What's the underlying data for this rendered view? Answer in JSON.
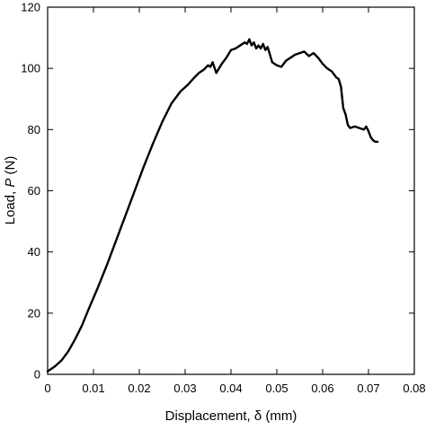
{
  "chart_data": {
    "type": "line",
    "title": "",
    "xlabel_prefix": "Displacement, ",
    "xlabel_symbol": "δ",
    "xlabel_suffix": " (mm)",
    "ylabel_prefix": "Load, ",
    "ylabel_symbol": "P",
    "ylabel_suffix": " (N)",
    "xlim": [
      0,
      0.08
    ],
    "ylim": [
      0,
      120
    ],
    "xticks": [
      0,
      0.01,
      0.02,
      0.03,
      0.04,
      0.05,
      0.06,
      0.07,
      0.08
    ],
    "xtick_labels": [
      "0",
      "0.01",
      "0.02",
      "0.03",
      "0.04",
      "0.05",
      "0.06",
      "0.07",
      "0.08"
    ],
    "yticks": [
      0,
      20,
      40,
      60,
      80,
      100,
      120
    ],
    "ytick_labels": [
      "0",
      "20",
      "40",
      "60",
      "80",
      "100",
      "120"
    ],
    "grid": false,
    "legend": "none",
    "line_color": "#000000",
    "series": [
      {
        "x": [
          0,
          0.0015,
          0.003,
          0.0045,
          0.006,
          0.0075,
          0.009,
          0.011,
          0.013,
          0.015,
          0.017,
          0.019,
          0.021,
          0.023,
          0.025,
          0.027,
          0.029,
          0.0305,
          0.032,
          0.033,
          0.034,
          0.035,
          0.0355,
          0.036,
          0.0368,
          0.0372,
          0.038,
          0.039,
          0.04,
          0.041,
          0.042,
          0.043,
          0.0435,
          0.044,
          0.0445,
          0.045,
          0.0455,
          0.046,
          0.0465,
          0.047,
          0.0475,
          0.048,
          0.049,
          0.05,
          0.051,
          0.052,
          0.053,
          0.054,
          0.055,
          0.056,
          0.057,
          0.058,
          0.059,
          0.06,
          0.061,
          0.062,
          0.063,
          0.0635,
          0.064,
          0.0645,
          0.065,
          0.0655,
          0.066,
          0.067,
          0.068,
          0.069,
          0.0695,
          0.07,
          0.0705,
          0.071,
          0.0715,
          0.072
        ],
        "y": [
          1,
          2.5,
          4.5,
          7.5,
          11.5,
          16,
          21.5,
          28.5,
          36,
          44,
          52,
          60,
          68,
          75.5,
          82.5,
          88.5,
          92.5,
          94.5,
          97,
          98.5,
          99.5,
          101,
          100.5,
          102,
          98.5,
          99.5,
          101.5,
          103.5,
          106,
          106.5,
          107.5,
          108.5,
          108,
          109.5,
          107.5,
          108.5,
          106.5,
          107.5,
          106.5,
          108,
          106,
          107,
          102,
          101,
          100.5,
          102.5,
          103.5,
          104.5,
          105,
          105.5,
          104,
          105,
          103.5,
          101.5,
          100,
          99,
          97,
          96.5,
          94,
          87,
          85,
          81.5,
          80.5,
          81,
          80.5,
          80,
          81,
          79.5,
          77.5,
          76.5,
          76,
          76
        ]
      }
    ]
  }
}
